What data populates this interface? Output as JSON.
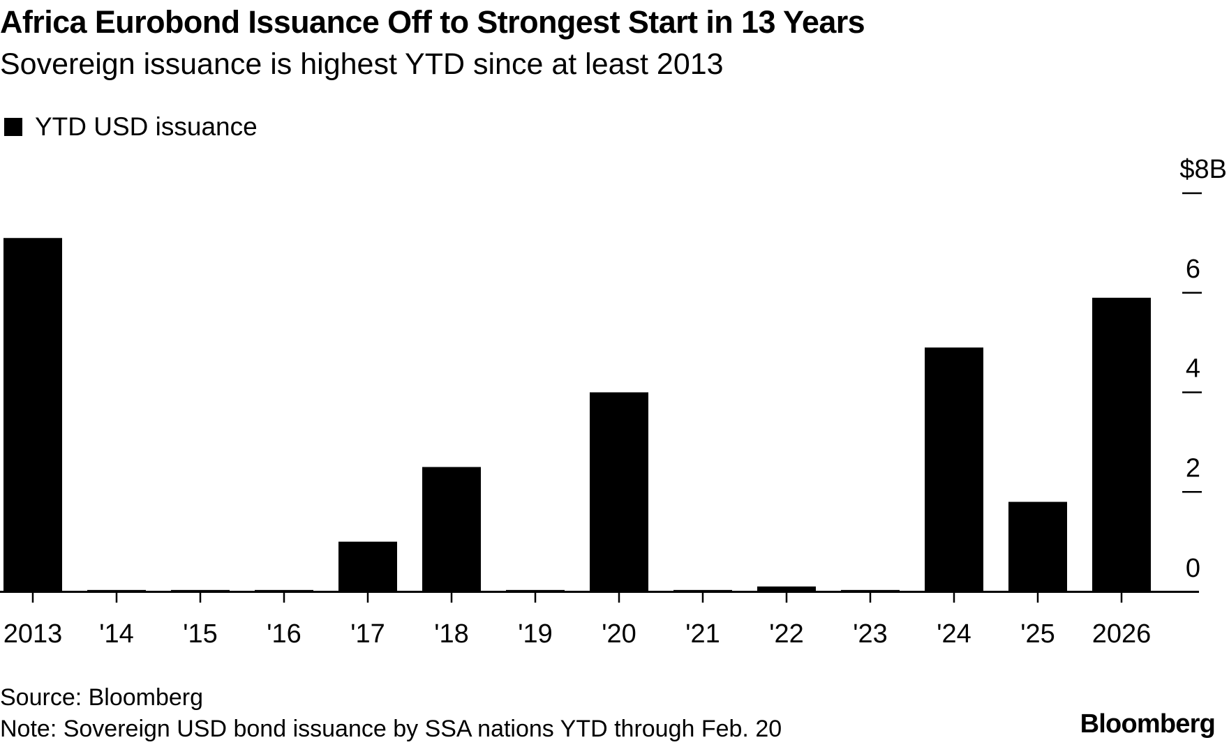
{
  "chart_data": {
    "type": "bar",
    "title": "Africa Eurobond Issuance Off to Strongest Start in 13 Years",
    "subtitle": "Sovereign issuance is highest YTD since at least 2013",
    "legend": [
      "YTD USD issuance"
    ],
    "legend_position": "top-left",
    "categories": [
      "2013",
      "'14",
      "'15",
      "'16",
      "'17",
      "'18",
      "'19",
      "'20",
      "'21",
      "'22",
      "'23",
      "'24",
      "'25",
      "2026"
    ],
    "series": [
      {
        "name": "YTD USD issuance",
        "color": "#000000",
        "values": [
          7.1,
          0.03,
          0.03,
          0.03,
          1.0,
          2.5,
          0.03,
          4.0,
          0.03,
          0.1,
          0.03,
          4.9,
          1.8,
          5.9
        ]
      }
    ],
    "ylim": [
      0,
      8
    ],
    "y_ticks": [
      0,
      2,
      4,
      6,
      8
    ],
    "y_tick_labels": [
      "0",
      "2",
      "4",
      "6",
      "$8B"
    ],
    "y_axis_side": "right",
    "xlabel": "",
    "ylabel": "",
    "grid": false
  },
  "footer": {
    "source": "Source: Bloomberg",
    "note": "Note: Sovereign USD bond issuance by SSA nations YTD through Feb. 20",
    "brand": "Bloomberg"
  }
}
